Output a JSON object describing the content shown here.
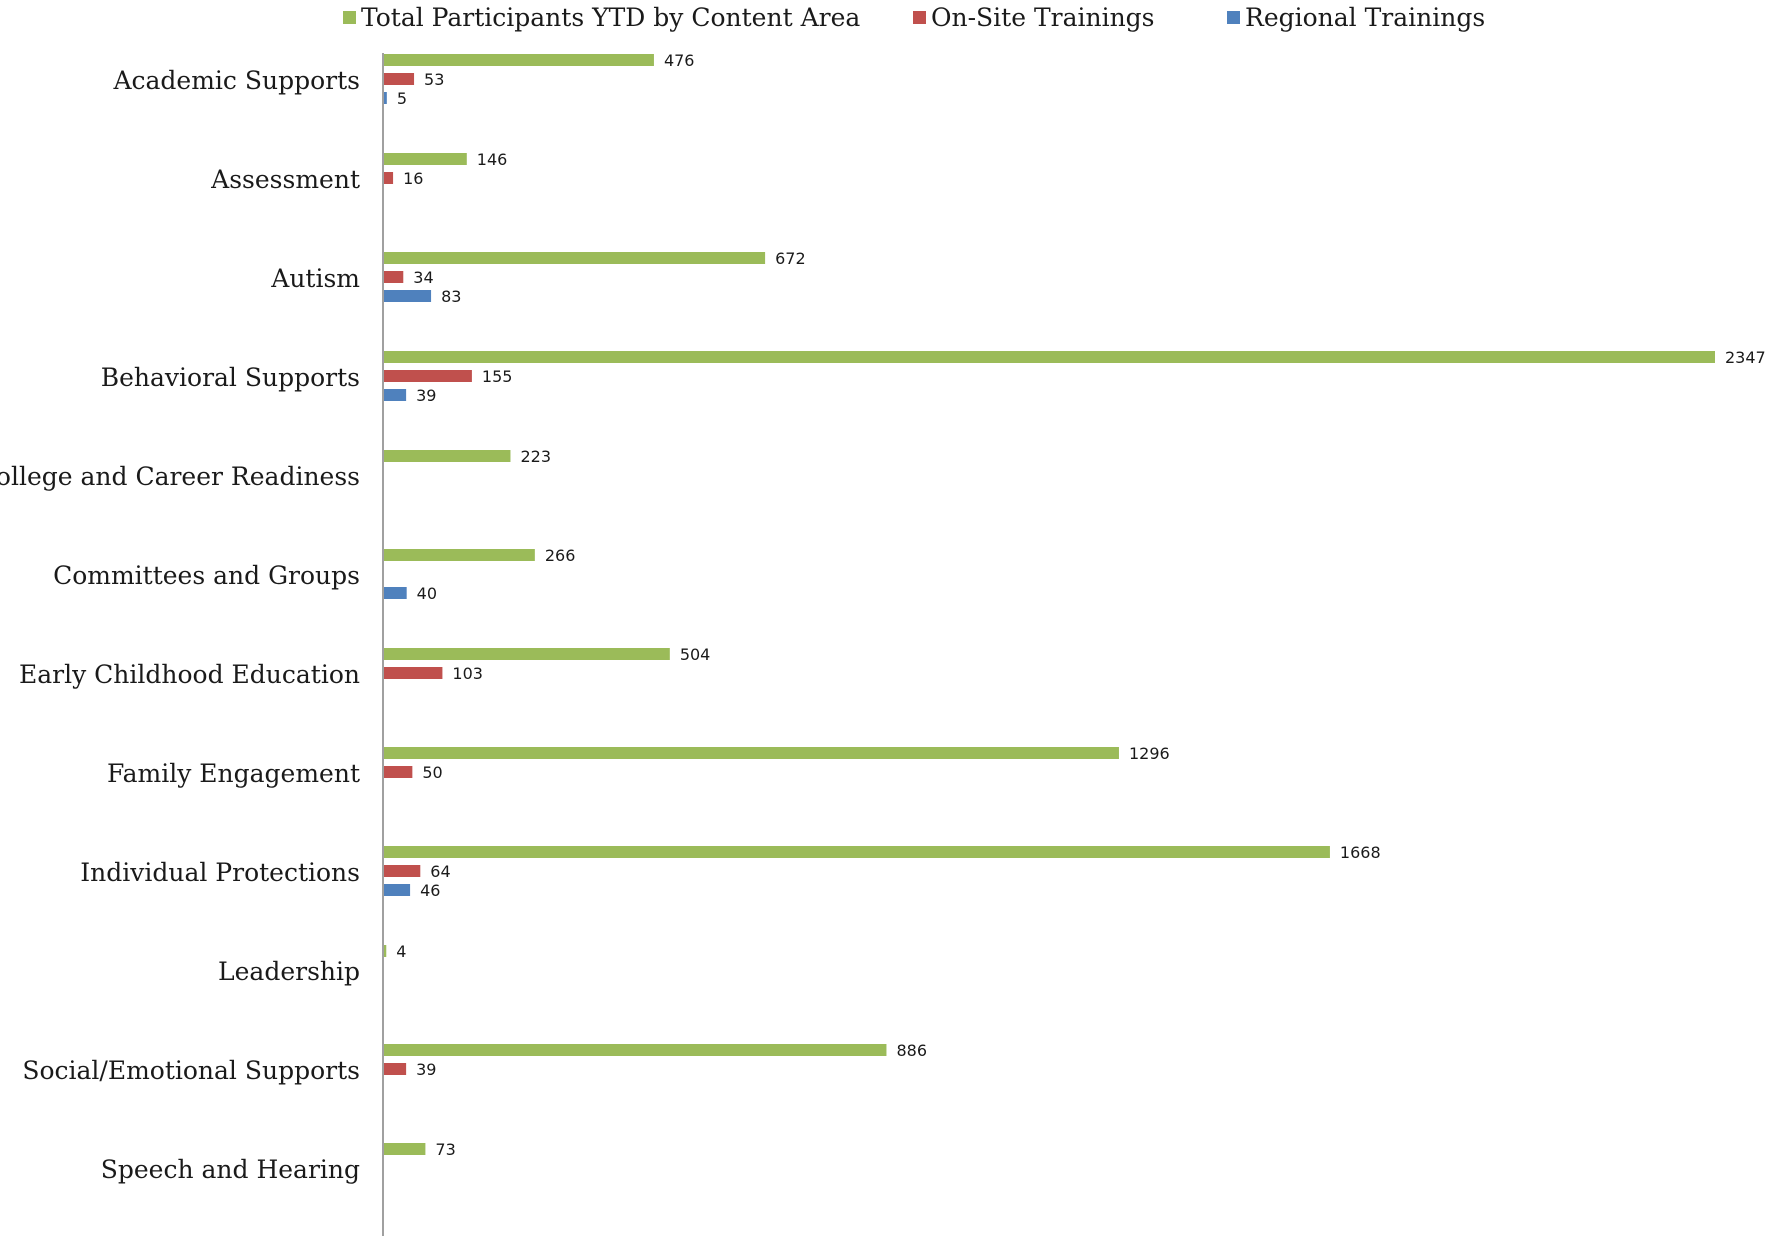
{
  "chart_data": {
    "type": "bar",
    "orientation": "horizontal",
    "title": "",
    "xlabel": "",
    "ylabel": "",
    "grid": false,
    "legend_position": "top",
    "categories": [
      "Academic Supports",
      "Assessment",
      "Autism",
      "Behavioral Supports",
      "College and Career Readiness",
      "Committees and Groups",
      "Early Childhood Education",
      "Family Engagement",
      "Individual Protections",
      "Leadership",
      "Social/Emotional Supports",
      "Speech and Hearing"
    ],
    "series": [
      {
        "name": "Total Participants YTD by Content Area",
        "color": "#9bbb59",
        "values": [
          476,
          146,
          672,
          2347,
          223,
          266,
          504,
          1296,
          1668,
          4,
          886,
          73
        ]
      },
      {
        "name": "On-Site Trainings",
        "color": "#c0504d",
        "values": [
          53,
          16,
          34,
          155,
          null,
          null,
          103,
          50,
          64,
          null,
          39,
          null
        ]
      },
      {
        "name": "Regional Trainings",
        "color": "#4f81bd",
        "values": [
          5,
          null,
          83,
          39,
          null,
          40,
          null,
          null,
          46,
          null,
          null,
          null
        ]
      }
    ],
    "xlim": [
      0,
      2347
    ]
  }
}
